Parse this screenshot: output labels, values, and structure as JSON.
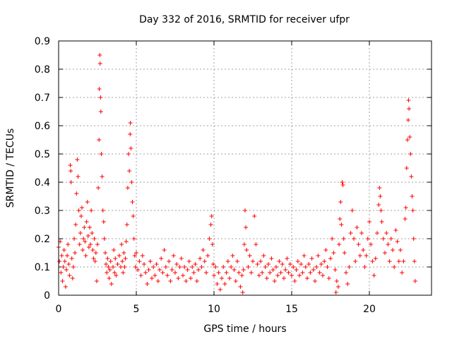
{
  "chart_data": {
    "type": "scatter",
    "title": "Day 332 of 2016, SRMTID for receiver ufpr",
    "xlabel": "GPS time / hours",
    "ylabel": "SRMTID / TECUs",
    "xlim": [
      0,
      24
    ],
    "ylim": [
      0,
      0.9
    ],
    "xticks": [
      0,
      5,
      10,
      15,
      20
    ],
    "xtick_labels": [
      "0",
      "5",
      "10",
      "15",
      "20"
    ],
    "yticks": [
      0,
      0.1,
      0.2,
      0.3,
      0.4,
      0.5,
      0.6,
      0.7,
      0.8,
      0.9
    ],
    "ytick_labels": [
      "0",
      "0.1",
      "0.2",
      "0.3",
      "0.4",
      "0.5",
      "0.6",
      "0.7",
      "0.8",
      "0.9"
    ],
    "grid": true,
    "marker": "plus",
    "marker_color": "#ff0000",
    "series": [
      {
        "name": "SRMTID",
        "points": [
          [
            0.0,
            0.17
          ],
          [
            0.05,
            0.12
          ],
          [
            0.1,
            0.19
          ],
          [
            0.15,
            0.08
          ],
          [
            0.2,
            0.14
          ],
          [
            0.25,
            0.05
          ],
          [
            0.3,
            0.1
          ],
          [
            0.35,
            0.16
          ],
          [
            0.4,
            0.12
          ],
          [
            0.45,
            0.03
          ],
          [
            0.5,
            0.09
          ],
          [
            0.55,
            0.14
          ],
          [
            0.6,
            0.18
          ],
          [
            0.65,
            0.11
          ],
          [
            0.7,
            0.07
          ],
          [
            0.75,
            0.46
          ],
          [
            0.78,
            0.44
          ],
          [
            0.8,
            0.4
          ],
          [
            0.85,
            0.13
          ],
          [
            0.9,
            0.06
          ],
          [
            0.95,
            0.1
          ],
          [
            1.0,
            0.2
          ],
          [
            1.05,
            0.15
          ],
          [
            1.1,
            0.25
          ],
          [
            1.15,
            0.36
          ],
          [
            1.2,
            0.48
          ],
          [
            1.25,
            0.42
          ],
          [
            1.3,
            0.3
          ],
          [
            1.35,
            0.18
          ],
          [
            1.4,
            0.22
          ],
          [
            1.45,
            0.28
          ],
          [
            1.5,
            0.31
          ],
          [
            1.55,
            0.16
          ],
          [
            1.6,
            0.2
          ],
          [
            1.65,
            0.24
          ],
          [
            1.7,
            0.19
          ],
          [
            1.75,
            0.14
          ],
          [
            1.8,
            0.26
          ],
          [
            1.85,
            0.33
          ],
          [
            1.9,
            0.21
          ],
          [
            1.95,
            0.17
          ],
          [
            2.0,
            0.24
          ],
          [
            2.05,
            0.18
          ],
          [
            2.1,
            0.3
          ],
          [
            2.15,
            0.22
          ],
          [
            2.2,
            0.16
          ],
          [
            2.25,
            0.13
          ],
          [
            2.3,
            0.2
          ],
          [
            2.35,
            0.12
          ],
          [
            2.4,
            0.15
          ],
          [
            2.45,
            0.05
          ],
          [
            2.5,
            0.18
          ],
          [
            2.55,
            0.38
          ],
          [
            2.6,
            0.55
          ],
          [
            2.62,
            0.73
          ],
          [
            2.65,
            0.85
          ],
          [
            2.67,
            0.82
          ],
          [
            2.7,
            0.7
          ],
          [
            2.72,
            0.65
          ],
          [
            2.75,
            0.5
          ],
          [
            2.8,
            0.42
          ],
          [
            2.85,
            0.3
          ],
          [
            2.9,
            0.26
          ],
          [
            2.95,
            0.2
          ],
          [
            3.0,
            0.15
          ],
          [
            3.05,
            0.11
          ],
          [
            3.1,
            0.08
          ],
          [
            3.15,
            0.13
          ],
          [
            3.2,
            0.1
          ],
          [
            3.25,
            0.06
          ],
          [
            3.3,
            0.09
          ],
          [
            3.35,
            0.12
          ],
          [
            3.4,
            0.04
          ],
          [
            3.5,
            0.1
          ],
          [
            3.55,
            0.16
          ],
          [
            3.6,
            0.08
          ],
          [
            3.65,
            0.13
          ],
          [
            3.7,
            0.07
          ],
          [
            3.8,
            0.11
          ],
          [
            3.9,
            0.14
          ],
          [
            4.0,
            0.1
          ],
          [
            4.05,
            0.18
          ],
          [
            4.1,
            0.12
          ],
          [
            4.15,
            0.08
          ],
          [
            4.2,
            0.15
          ],
          [
            4.25,
            0.1
          ],
          [
            4.3,
            0.13
          ],
          [
            4.35,
            0.19
          ],
          [
            4.4,
            0.25
          ],
          [
            4.45,
            0.38
          ],
          [
            4.5,
            0.5
          ],
          [
            4.55,
            0.44
          ],
          [
            4.6,
            0.57
          ],
          [
            4.62,
            0.61
          ],
          [
            4.65,
            0.52
          ],
          [
            4.7,
            0.4
          ],
          [
            4.75,
            0.33
          ],
          [
            4.8,
            0.28
          ],
          [
            4.85,
            0.2
          ],
          [
            4.9,
            0.14
          ],
          [
            4.95,
            0.1
          ],
          [
            5.0,
            0.15
          ],
          [
            5.1,
            0.09
          ],
          [
            5.2,
            0.12
          ],
          [
            5.3,
            0.07
          ],
          [
            5.4,
            0.14
          ],
          [
            5.5,
            0.11
          ],
          [
            5.6,
            0.08
          ],
          [
            5.7,
            0.04
          ],
          [
            5.8,
            0.09
          ],
          [
            5.9,
            0.12
          ],
          [
            6.0,
            0.06
          ],
          [
            6.1,
            0.1
          ],
          [
            6.2,
            0.07
          ],
          [
            6.3,
            0.11
          ],
          [
            6.4,
            0.05
          ],
          [
            6.5,
            0.09
          ],
          [
            6.6,
            0.13
          ],
          [
            6.7,
            0.08
          ],
          [
            6.8,
            0.16
          ],
          [
            6.9,
            0.1
          ],
          [
            7.0,
            0.07
          ],
          [
            7.1,
            0.12
          ],
          [
            7.2,
            0.05
          ],
          [
            7.3,
            0.09
          ],
          [
            7.4,
            0.14
          ],
          [
            7.5,
            0.08
          ],
          [
            7.6,
            0.11
          ],
          [
            7.7,
            0.06
          ],
          [
            7.8,
            0.1
          ],
          [
            7.9,
            0.13
          ],
          [
            8.0,
            0.07
          ],
          [
            8.1,
            0.1
          ],
          [
            8.2,
            0.05
          ],
          [
            8.3,
            0.09
          ],
          [
            8.4,
            0.12
          ],
          [
            8.5,
            0.06
          ],
          [
            8.6,
            0.1
          ],
          [
            8.7,
            0.08
          ],
          [
            8.8,
            0.11
          ],
          [
            8.9,
            0.05
          ],
          [
            9.0,
            0.09
          ],
          [
            9.1,
            0.13
          ],
          [
            9.2,
            0.1
          ],
          [
            9.3,
            0.16
          ],
          [
            9.4,
            0.12
          ],
          [
            9.5,
            0.08
          ],
          [
            9.6,
            0.14
          ],
          [
            9.7,
            0.2
          ],
          [
            9.8,
            0.25
          ],
          [
            9.85,
            0.28
          ],
          [
            9.9,
            0.18
          ],
          [
            9.95,
            0.11
          ],
          [
            10.0,
            0.07
          ],
          [
            10.1,
            0.1
          ],
          [
            10.2,
            0.04
          ],
          [
            10.3,
            0.08
          ],
          [
            10.4,
            0.02
          ],
          [
            10.5,
            0.06
          ],
          [
            10.6,
            0.1
          ],
          [
            10.7,
            0.04
          ],
          [
            10.8,
            0.08
          ],
          [
            10.9,
            0.12
          ],
          [
            11.0,
            0.06
          ],
          [
            11.1,
            0.1
          ],
          [
            11.2,
            0.14
          ],
          [
            11.3,
            0.09
          ],
          [
            11.4,
            0.05
          ],
          [
            11.5,
            0.12
          ],
          [
            11.6,
            0.08
          ],
          [
            11.7,
            0.03
          ],
          [
            11.8,
            0.07
          ],
          [
            11.85,
            0.01
          ],
          [
            11.9,
            0.09
          ],
          [
            11.95,
            0.18
          ],
          [
            12.0,
            0.3
          ],
          [
            12.05,
            0.24
          ],
          [
            12.1,
            0.16
          ],
          [
            12.2,
            0.1
          ],
          [
            12.3,
            0.14
          ],
          [
            12.4,
            0.08
          ],
          [
            12.5,
            0.12
          ],
          [
            12.6,
            0.28
          ],
          [
            12.7,
            0.18
          ],
          [
            12.8,
            0.11
          ],
          [
            12.9,
            0.07
          ],
          [
            13.0,
            0.12
          ],
          [
            13.1,
            0.08
          ],
          [
            13.2,
            0.14
          ],
          [
            13.3,
            0.1
          ],
          [
            13.4,
            0.06
          ],
          [
            13.5,
            0.11
          ],
          [
            13.6,
            0.08
          ],
          [
            13.7,
            0.13
          ],
          [
            13.8,
            0.09
          ],
          [
            13.9,
            0.05
          ],
          [
            14.0,
            0.1
          ],
          [
            14.1,
            0.07
          ],
          [
            14.2,
            0.12
          ],
          [
            14.3,
            0.08
          ],
          [
            14.4,
            0.11
          ],
          [
            14.5,
            0.06
          ],
          [
            14.6,
            0.09
          ],
          [
            14.7,
            0.13
          ],
          [
            14.8,
            0.08
          ],
          [
            14.9,
            0.11
          ],
          [
            15.0,
            0.07
          ],
          [
            15.1,
            0.1
          ],
          [
            15.2,
            0.05
          ],
          [
            15.3,
            0.09
          ],
          [
            15.4,
            0.12
          ],
          [
            15.5,
            0.07
          ],
          [
            15.6,
            0.11
          ],
          [
            15.7,
            0.08
          ],
          [
            15.8,
            0.14
          ],
          [
            15.9,
            0.1
          ],
          [
            16.0,
            0.06
          ],
          [
            16.1,
            0.11
          ],
          [
            16.2,
            0.08
          ],
          [
            16.3,
            0.13
          ],
          [
            16.4,
            0.09
          ],
          [
            16.5,
            0.05
          ],
          [
            16.6,
            0.1
          ],
          [
            16.7,
            0.14
          ],
          [
            16.8,
            0.08
          ],
          [
            16.9,
            0.11
          ],
          [
            17.0,
            0.07
          ],
          [
            17.1,
            0.12
          ],
          [
            17.2,
            0.16
          ],
          [
            17.3,
            0.1
          ],
          [
            17.4,
            0.06
          ],
          [
            17.5,
            0.13
          ],
          [
            17.6,
            0.2
          ],
          [
            17.7,
            0.15
          ],
          [
            17.8,
            0.09
          ],
          [
            17.85,
            0.01
          ],
          [
            17.9,
            0.05
          ],
          [
            18.0,
            0.03
          ],
          [
            18.05,
            0.18
          ],
          [
            18.1,
            0.27
          ],
          [
            18.15,
            0.33
          ],
          [
            18.2,
            0.25
          ],
          [
            18.25,
            0.4
          ],
          [
            18.3,
            0.39
          ],
          [
            18.35,
            0.2
          ],
          [
            18.4,
            0.15
          ],
          [
            18.5,
            0.08
          ],
          [
            18.6,
            0.04
          ],
          [
            18.7,
            0.1
          ],
          [
            18.8,
            0.22
          ],
          [
            18.9,
            0.3
          ],
          [
            19.0,
            0.2
          ],
          [
            19.1,
            0.12
          ],
          [
            19.2,
            0.24
          ],
          [
            19.3,
            0.18
          ],
          [
            19.4,
            0.14
          ],
          [
            19.5,
            0.22
          ],
          [
            19.6,
            0.16
          ],
          [
            19.7,
            0.1
          ],
          [
            19.8,
            0.14
          ],
          [
            19.9,
            0.2
          ],
          [
            20.0,
            0.26
          ],
          [
            20.1,
            0.18
          ],
          [
            20.2,
            0.12
          ],
          [
            20.3,
            0.07
          ],
          [
            20.4,
            0.13
          ],
          [
            20.5,
            0.22
          ],
          [
            20.6,
            0.32
          ],
          [
            20.65,
            0.38
          ],
          [
            20.7,
            0.35
          ],
          [
            20.75,
            0.3
          ],
          [
            20.8,
            0.26
          ],
          [
            20.9,
            0.2
          ],
          [
            21.0,
            0.15
          ],
          [
            21.1,
            0.22
          ],
          [
            21.2,
            0.18
          ],
          [
            21.3,
            0.12
          ],
          [
            21.4,
            0.2
          ],
          [
            21.5,
            0.16
          ],
          [
            21.6,
            0.1
          ],
          [
            21.7,
            0.23
          ],
          [
            21.8,
            0.19
          ],
          [
            21.9,
            0.12
          ],
          [
            22.0,
            0.16
          ],
          [
            22.1,
            0.08
          ],
          [
            22.2,
            0.12
          ],
          [
            22.3,
            0.27
          ],
          [
            22.35,
            0.31
          ],
          [
            22.4,
            0.45
          ],
          [
            22.45,
            0.55
          ],
          [
            22.5,
            0.62
          ],
          [
            22.52,
            0.69
          ],
          [
            22.55,
            0.66
          ],
          [
            22.6,
            0.56
          ],
          [
            22.65,
            0.5
          ],
          [
            22.7,
            0.42
          ],
          [
            22.75,
            0.35
          ],
          [
            22.8,
            0.3
          ],
          [
            22.85,
            0.2
          ],
          [
            22.9,
            0.12
          ],
          [
            22.95,
            0.05
          ]
        ]
      }
    ]
  }
}
